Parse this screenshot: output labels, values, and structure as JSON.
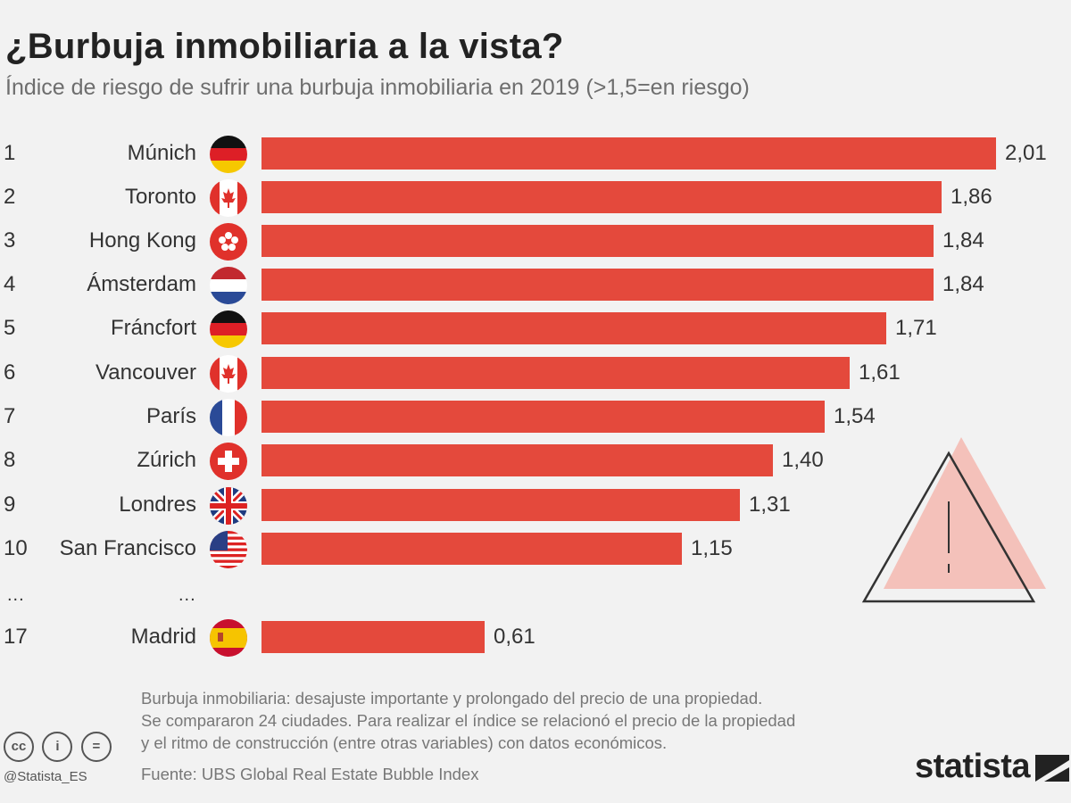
{
  "title": "¿Burbuja inmobiliaria a la vista?",
  "subtitle": "Índice de riesgo de sufrir una burbuja inmobiliaria en 2019 (>1,5=en riesgo)",
  "chart_data": {
    "type": "bar",
    "orientation": "horizontal",
    "title": "¿Burbuja inmobiliaria a la vista?",
    "subtitle": "Índice de riesgo de sufrir una burbuja inmobiliaria en 2019 (>1,5=en riesgo)",
    "xlabel": "",
    "ylabel": "",
    "xlim": [
      0,
      2.01
    ],
    "grid": false,
    "bar_color": "#e4493c",
    "rows": [
      {
        "rank": "1",
        "city": "Múnich",
        "flag": "germany-flag-icon",
        "value": 2.01,
        "label": "2,01"
      },
      {
        "rank": "2",
        "city": "Toronto",
        "flag": "canada-flag-icon",
        "value": 1.86,
        "label": "1,86"
      },
      {
        "rank": "3",
        "city": "Hong Kong",
        "flag": "hong-kong-flag-icon",
        "value": 1.84,
        "label": "1,84"
      },
      {
        "rank": "4",
        "city": "Ámsterdam",
        "flag": "netherlands-flag-icon",
        "value": 1.84,
        "label": "1,84"
      },
      {
        "rank": "5",
        "city": "Fráncfort",
        "flag": "germany-flag-icon",
        "value": 1.71,
        "label": "1,71"
      },
      {
        "rank": "6",
        "city": "Vancouver",
        "flag": "canada-flag-icon",
        "value": 1.61,
        "label": "1,61"
      },
      {
        "rank": "7",
        "city": "París",
        "flag": "france-flag-icon",
        "value": 1.54,
        "label": "1,54"
      },
      {
        "rank": "8",
        "city": "Zúrich",
        "flag": "switzerland-flag-icon",
        "value": 1.4,
        "label": "1,40"
      },
      {
        "rank": "9",
        "city": "Londres",
        "flag": "uk-flag-icon",
        "value": 1.31,
        "label": "1,31"
      },
      {
        "rank": "10",
        "city": "San Francisco",
        "flag": "usa-flag-icon",
        "value": 1.15,
        "label": "1,15"
      },
      {
        "rank": "17",
        "city": "Madrid",
        "flag": "spain-flag-icon",
        "value": 0.61,
        "label": "0,61"
      }
    ],
    "gap_marker": "..."
  },
  "note_lines": [
    "Burbuja  inmobiliaria: desajuste importante y prolongado del precio de una propiedad.",
    "Se compararon 24 ciudades. Para realizar el índice se relacionó el precio de la propiedad",
    "y el ritmo de construcción (entre otras variables) con datos económicos."
  ],
  "source": "Fuente: UBS Global Real Estate Bubble Index",
  "license_icons": {
    "cc": "cc",
    "by": "i",
    "nd": "="
  },
  "handle": "@Statista_ES",
  "logo": "statista",
  "decoration": "warning-triangle-icon"
}
